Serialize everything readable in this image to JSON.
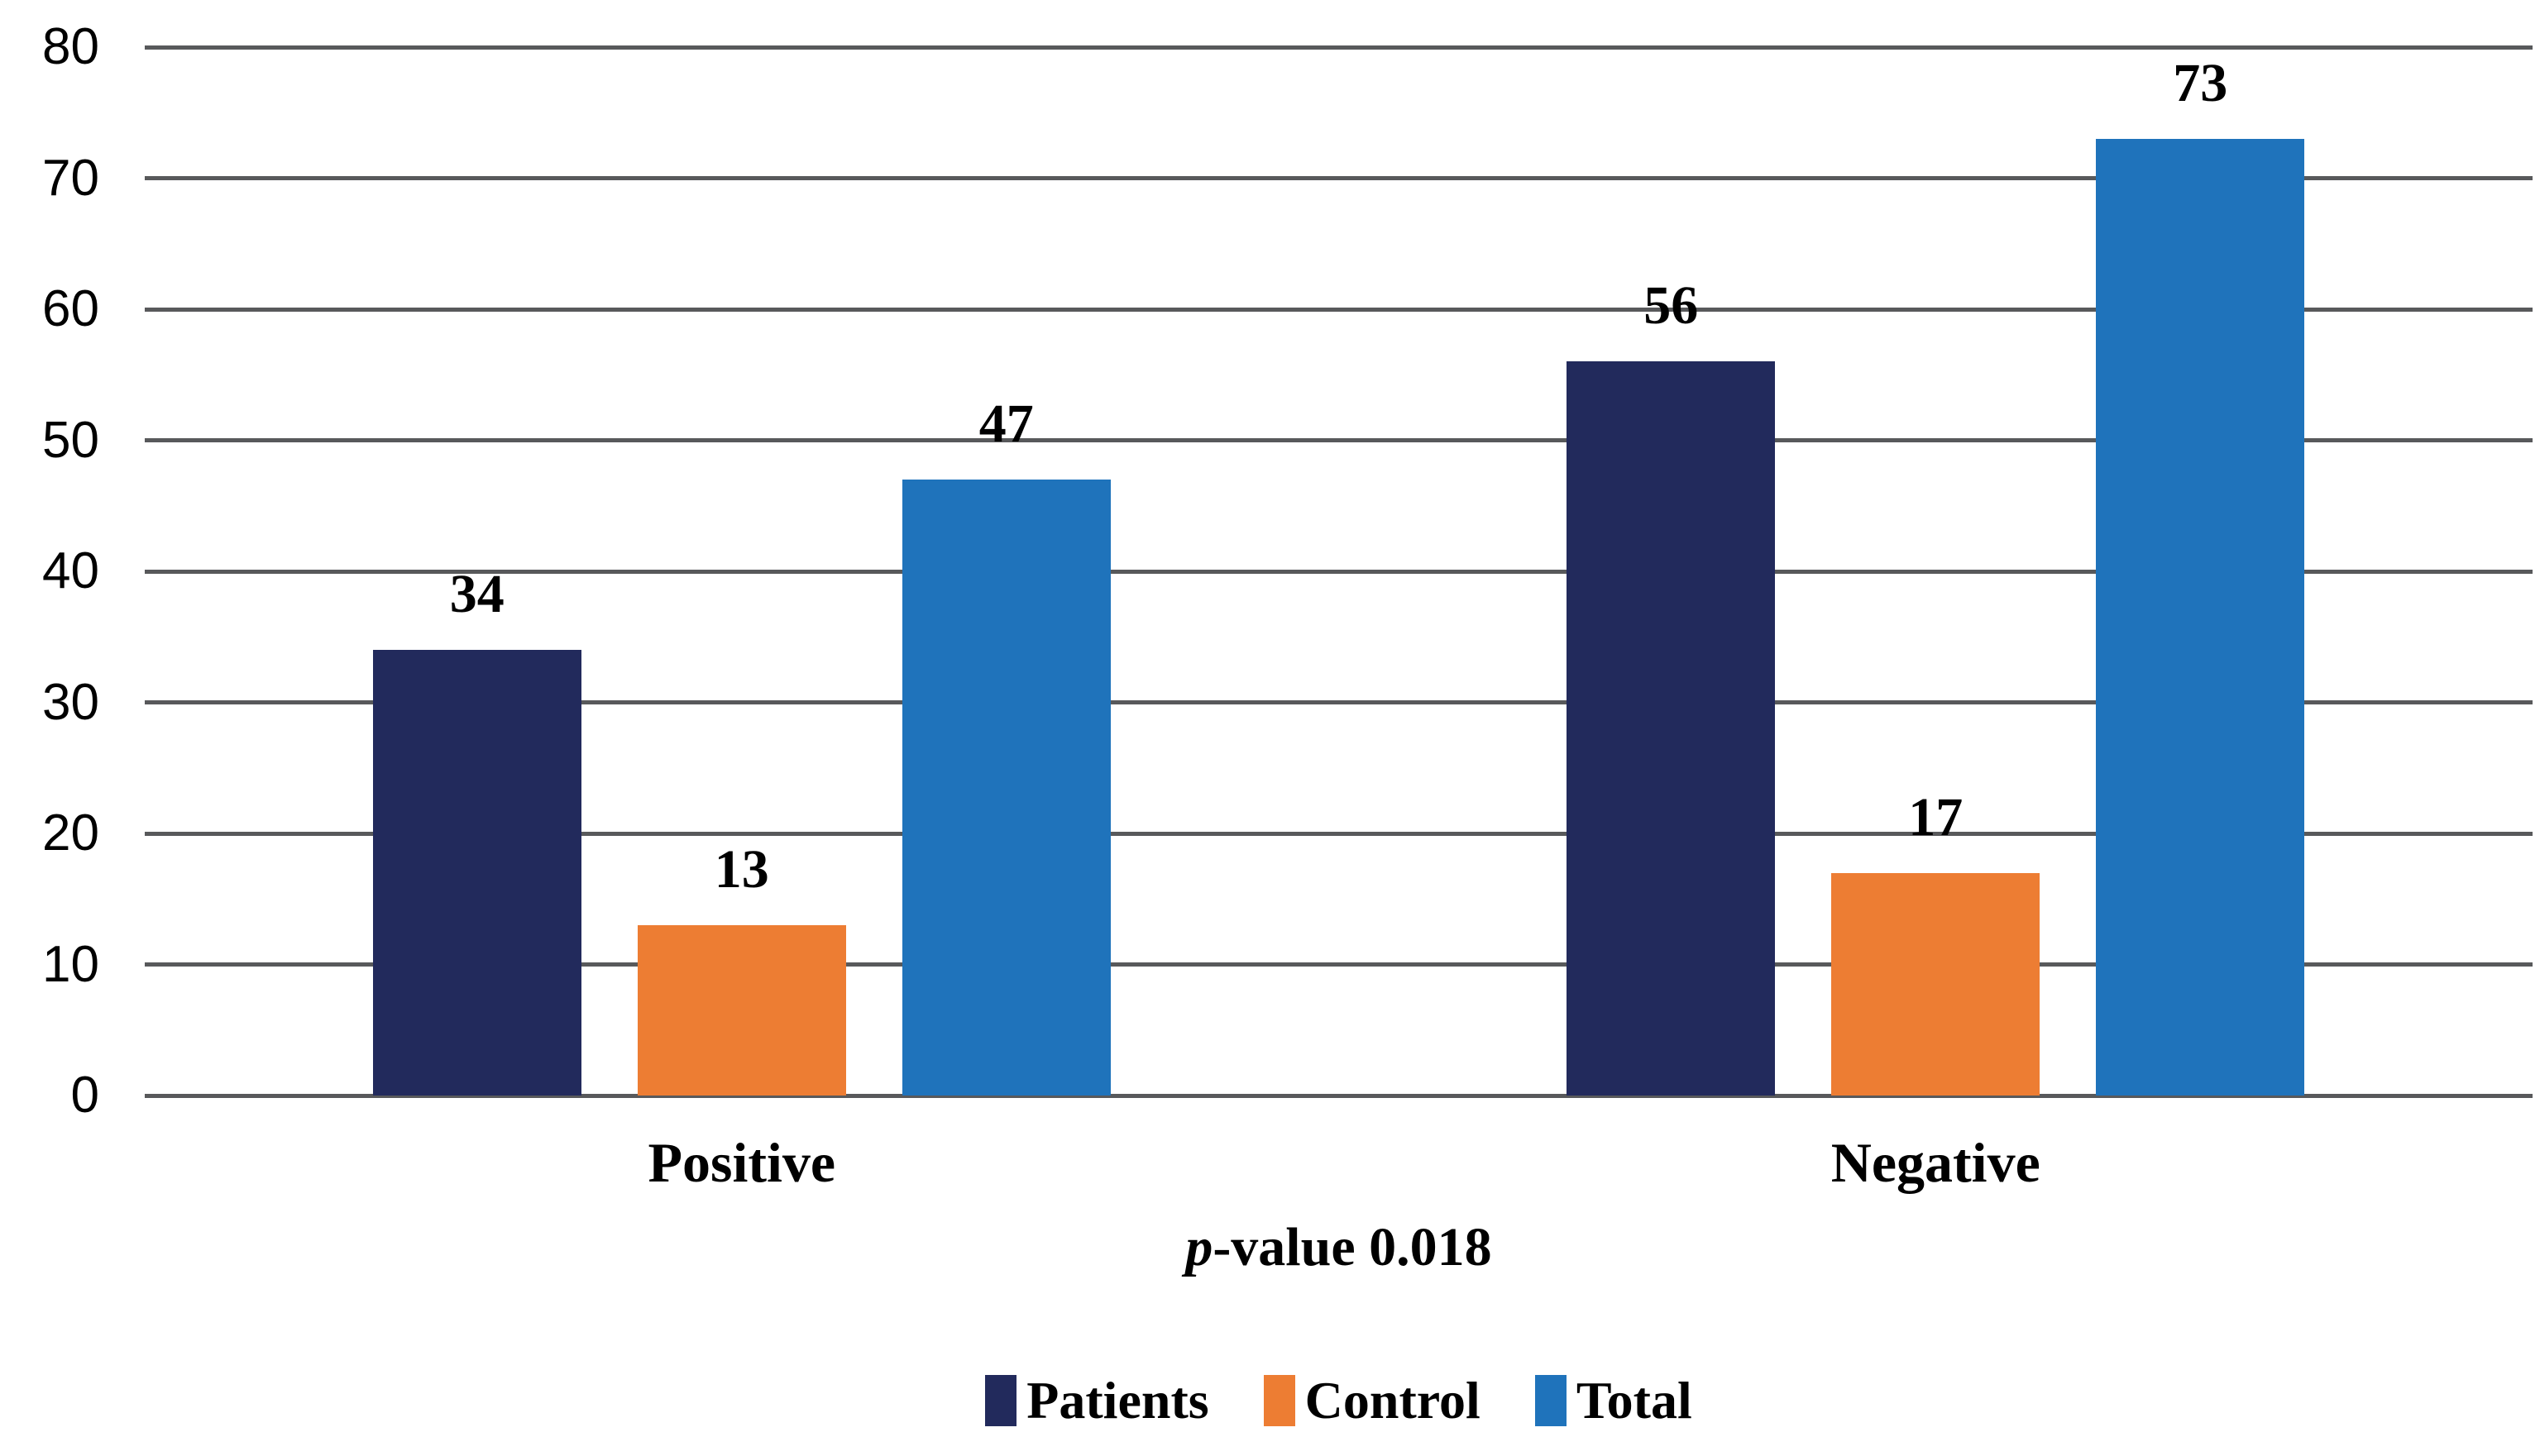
{
  "chart_data": {
    "type": "bar",
    "categories": [
      "Positive",
      "Negative"
    ],
    "series": [
      {
        "name": "Patients",
        "color": "#222A5C",
        "values": [
          34,
          56
        ]
      },
      {
        "name": "Control",
        "color": "#ED7D33",
        "values": [
          13,
          17
        ]
      },
      {
        "name": "Total",
        "color": "#1F73BB",
        "values": [
          47,
          73
        ]
      }
    ],
    "ylim": [
      0,
      80
    ],
    "yticks": [
      0,
      10,
      20,
      30,
      40,
      50,
      60,
      70,
      80
    ],
    "grid": "horizontal",
    "gridline_color": "#58595B",
    "data_labels": true,
    "legend_position": "bottom",
    "caption": {
      "italic_prefix": "p",
      "text": "-value 0.018"
    }
  }
}
